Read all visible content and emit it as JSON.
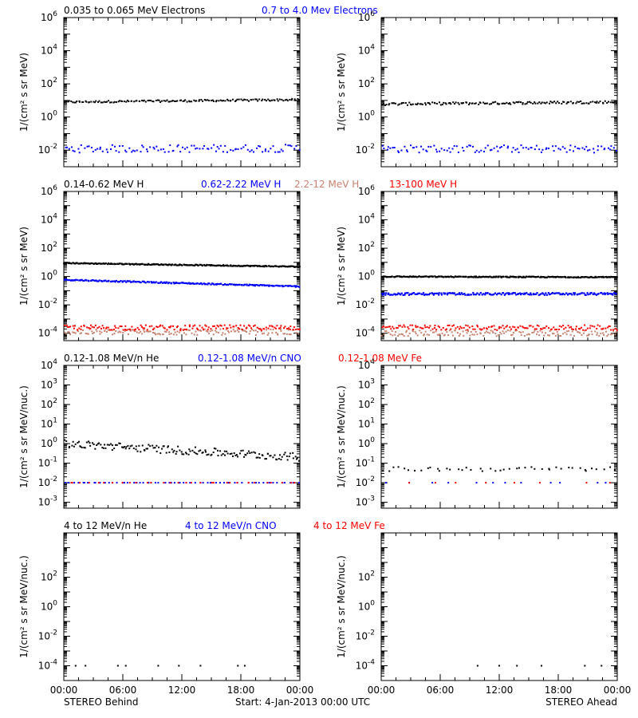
{
  "colors": {
    "black": "#000000",
    "blue": "#0000ff",
    "salmon": "#c8826e",
    "red": "#ff0000"
  },
  "footer": {
    "left": "STEREO Behind",
    "center": "Start:  4-Jan-2013 00:00 UTC",
    "right": "STEREO Ahead"
  },
  "chart_data": [
    {
      "id": "electrons",
      "type": "scatter",
      "y_scale": "log",
      "ylim": [
        0.001,
        1000000
      ],
      "ylabel": "1/(cm² s sr MeV)",
      "yticks": [
        {
          "label": "10",
          "exp": "6",
          "value": 1000000
        },
        {
          "label": "10",
          "exp": "4",
          "value": 10000
        },
        {
          "label": "10",
          "exp": "2",
          "value": 100
        },
        {
          "label": "10",
          "exp": "0",
          "value": 1
        },
        {
          "label": "10",
          "exp": "-2",
          "value": 0.01
        }
      ],
      "xlim": [
        0,
        24
      ],
      "xticks": [
        "00:00",
        "06:00",
        "12:00",
        "18:00",
        "00:00"
      ],
      "legend": [
        {
          "name": "0.035 to 0.065 MeV Electrons",
          "color": "#000000"
        },
        {
          "name": "0.7 to 4.0 Mev Electrons",
          "color": "#0000ff"
        }
      ],
      "behind": [
        {
          "name": "0.035 to 0.065 MeV Electrons",
          "color": "#000000",
          "x_range": [
            0,
            24
          ],
          "y_start": 8,
          "y_end": 11,
          "scatter": 1.15,
          "count": 150
        },
        {
          "name": "0.7 to 4.0 Mev Electrons",
          "color": "#0000ff",
          "x_range": [
            0,
            24
          ],
          "y_start": 0.012,
          "y_end": 0.013,
          "scatter": 1.7,
          "count": 110
        }
      ],
      "ahead": [
        {
          "name": "0.035 to 0.065 MeV Electrons",
          "color": "#000000",
          "x_range": [
            0,
            24
          ],
          "y_start": 6,
          "y_end": 8,
          "scatter": 1.2,
          "count": 150
        },
        {
          "name": "0.7 to 4.0 Mev Electrons",
          "color": "#0000ff",
          "x_range": [
            0,
            24
          ],
          "y_start": 0.012,
          "y_end": 0.012,
          "scatter": 1.7,
          "count": 110
        }
      ]
    },
    {
      "id": "protons",
      "type": "scatter",
      "y_scale": "log",
      "ylim": [
        3e-05,
        1000000
      ],
      "ylabel": "1/(cm² s sr MeV)",
      "yticks": [
        {
          "label": "10",
          "exp": "6",
          "value": 1000000
        },
        {
          "label": "10",
          "exp": "4",
          "value": 10000
        },
        {
          "label": "10",
          "exp": "2",
          "value": 100
        },
        {
          "label": "10",
          "exp": "0",
          "value": 1
        },
        {
          "label": "10",
          "exp": "-2",
          "value": 0.01
        },
        {
          "label": "10",
          "exp": "-4",
          "value": 0.0001
        }
      ],
      "xlim": [
        0,
        24
      ],
      "xticks": [
        "00:00",
        "06:00",
        "12:00",
        "18:00",
        "00:00"
      ],
      "legend": [
        {
          "name": "0.14-0.62 MeV H",
          "color": "#000000"
        },
        {
          "name": "0.62-2.22 MeV H",
          "color": "#0000ff"
        },
        {
          "name": "2.2-12 MeV H",
          "color": "#c8826e"
        },
        {
          "name": "13-100 MeV H",
          "color": "#ff0000"
        }
      ],
      "behind": [
        {
          "name": "0.14-0.62 MeV H",
          "color": "#000000",
          "x_range": [
            0,
            24
          ],
          "y_start": 9,
          "y_end": 5,
          "scatter": 1.08,
          "count": 220,
          "line": true
        },
        {
          "name": "0.62-2.22 MeV H",
          "color": "#0000ff",
          "x_range": [
            0,
            24
          ],
          "y_start": 0.6,
          "y_end": 0.2,
          "scatter": 1.1,
          "count": 200,
          "line": true
        },
        {
          "name": "2.2-12 MeV H",
          "color": "#c8826e",
          "x_range": [
            0,
            24
          ],
          "y_start": 0.00012,
          "y_end": 0.00012,
          "scatter": 1.6,
          "count": 150
        },
        {
          "name": "13-100 MeV H",
          "color": "#ff0000",
          "x_range": [
            0,
            24
          ],
          "y_start": 0.00025,
          "y_end": 0.00025,
          "scatter": 1.5,
          "count": 150
        }
      ],
      "ahead": [
        {
          "name": "0.14-0.62 MeV H",
          "color": "#000000",
          "x_range": [
            0,
            24
          ],
          "y_start": 1,
          "y_end": 0.9,
          "scatter": 1.08,
          "count": 220,
          "line": true
        },
        {
          "name": "0.62-2.22 MeV H",
          "color": "#0000ff",
          "x_range": [
            0,
            24
          ],
          "y_start": 0.06,
          "y_end": 0.06,
          "scatter": 1.2,
          "count": 200,
          "line": true
        },
        {
          "name": "2.2-12 MeV H",
          "color": "#c8826e",
          "x_range": [
            0,
            24
          ],
          "y_start": 0.0001,
          "y_end": 0.0001,
          "scatter": 1.6,
          "count": 150
        },
        {
          "name": "13-100 MeV H",
          "color": "#ff0000",
          "x_range": [
            0,
            24
          ],
          "y_start": 0.00025,
          "y_end": 0.00025,
          "scatter": 1.5,
          "count": 150
        }
      ]
    },
    {
      "id": "heavy-low",
      "type": "scatter",
      "y_scale": "log",
      "ylim": [
        0.0005,
        10000
      ],
      "ylabel": "1/(cm² s sr MeV/nuc.)",
      "yticks": [
        {
          "label": "10",
          "exp": "4",
          "value": 10000
        },
        {
          "label": "10",
          "exp": "3",
          "value": 1000
        },
        {
          "label": "10",
          "exp": "2",
          "value": 100
        },
        {
          "label": "10",
          "exp": "1",
          "value": 10
        },
        {
          "label": "10",
          "exp": "0",
          "value": 1
        },
        {
          "label": "10",
          "exp": "-1",
          "value": 0.1
        },
        {
          "label": "10",
          "exp": "-2",
          "value": 0.01
        },
        {
          "label": "10",
          "exp": "-3",
          "value": 0.001
        }
      ],
      "xlim": [
        0,
        24
      ],
      "xticks": [
        "00:00",
        "06:00",
        "12:00",
        "18:00",
        "00:00"
      ],
      "legend": [
        {
          "name": "0.12-1.08 MeV/n He",
          "color": "#000000"
        },
        {
          "name": "0.12-1.08 MeV/n CNO",
          "color": "#0000ff"
        },
        {
          "name": "0.12-1.08 MeV Fe",
          "color": "#ff0000"
        }
      ],
      "behind": [
        {
          "name": "0.12-1.08 MeV/n He",
          "color": "#000000",
          "x_range": [
            0,
            24
          ],
          "y_start": 1.0,
          "y_end": 0.2,
          "scatter": 1.6,
          "count": 170
        },
        {
          "name": "0.12-1.08 MeV/n CNO",
          "color": "#0000ff",
          "x_range": [
            0,
            24
          ],
          "y_start": 0.01,
          "y_end": 0.01,
          "scatter": 1.0,
          "count": 60
        },
        {
          "name": "0.12-1.08 MeV Fe",
          "color": "#ff0000",
          "x_range": [
            0,
            24
          ],
          "y_start": 0.01,
          "y_end": 0.01,
          "scatter": 1.0,
          "count": 30
        }
      ],
      "ahead": [
        {
          "name": "0.12-1.08 MeV/n He",
          "color": "#000000",
          "x_range": [
            0,
            24
          ],
          "y_start": 0.05,
          "y_end": 0.05,
          "scatter": 1.3,
          "count": 45
        },
        {
          "name": "0.12-1.08 MeV/n CNO",
          "color": "#0000ff",
          "x_range": [
            0,
            24
          ],
          "y_start": 0.01,
          "y_end": 0.01,
          "scatter": 1.0,
          "count": 12
        },
        {
          "name": "0.12-1.08 MeV Fe",
          "color": "#ff0000",
          "x_range": [
            0,
            24
          ],
          "y_start": 0.01,
          "y_end": 0.01,
          "scatter": 1.0,
          "count": 8
        }
      ]
    },
    {
      "id": "heavy-high",
      "type": "scatter",
      "y_scale": "log",
      "ylim": [
        1e-05,
        100000
      ],
      "ylabel": "1/(cm² s sr MeV/nuc.)",
      "yticks": [
        {
          "label": "10",
          "exp": "2",
          "value": 100
        },
        {
          "label": "10",
          "exp": "0",
          "value": 1
        },
        {
          "label": "10",
          "exp": "-2",
          "value": 0.01
        },
        {
          "label": "10",
          "exp": "-4",
          "value": 0.0001
        }
      ],
      "xlim": [
        0,
        24
      ],
      "xticks": [
        "00:00",
        "06:00",
        "12:00",
        "18:00",
        "00:00"
      ],
      "legend": [
        {
          "name": "4 to 12 MeV/n He",
          "color": "#000000"
        },
        {
          "name": "4 to 12 MeV/n CNO",
          "color": "#0000ff"
        },
        {
          "name": "4 to 12 MeV Fe",
          "color": "#ff0000"
        }
      ],
      "behind": [
        {
          "name": "4 to 12 MeV/n He",
          "color": "#000000",
          "points": [
            [
              1.2,
              0.0001
            ],
            [
              2.2,
              0.0001
            ],
            [
              5.5,
              0.0001
            ],
            [
              6.3,
              0.0001
            ],
            [
              9.6,
              0.0001
            ],
            [
              11.7,
              0.0001
            ],
            [
              13.9,
              0.0001
            ],
            [
              17.7,
              0.0001
            ],
            [
              18.4,
              0.0001
            ]
          ]
        }
      ],
      "ahead": [
        {
          "name": "4 to 12 MeV/n He",
          "color": "#000000",
          "points": [
            [
              9.8,
              0.0001
            ],
            [
              12,
              0.0001
            ],
            [
              13.8,
              0.0001
            ],
            [
              16.3,
              0.0001
            ],
            [
              20.7,
              0.0001
            ],
            [
              22.4,
              0.0001
            ]
          ]
        }
      ]
    }
  ]
}
